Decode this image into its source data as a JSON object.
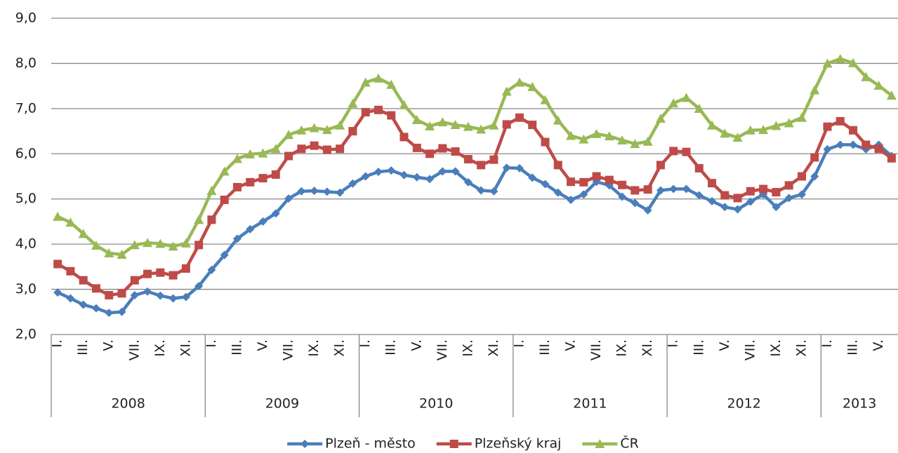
{
  "chart_data": {
    "type": "line",
    "categories": [
      "I.",
      null,
      "III.",
      null,
      "V.",
      null,
      "VII.",
      null,
      "IX.",
      null,
      "XI.",
      null,
      "I.",
      null,
      "III.",
      null,
      "V.",
      null,
      "VII.",
      null,
      "IX.",
      null,
      "XI.",
      null,
      "I.",
      null,
      "III.",
      null,
      "V.",
      null,
      "VII.",
      null,
      "IX.",
      null,
      "XI.",
      null,
      "I.",
      null,
      "III.",
      null,
      "V.",
      null,
      "VII.",
      null,
      "IX.",
      null,
      "XI.",
      null,
      "I.",
      null,
      "III.",
      null,
      "V.",
      null,
      "VII.",
      null,
      "IX.",
      null,
      "XI.",
      null,
      "I.",
      null,
      "III.",
      null,
      "V.",
      null
    ],
    "x_groups": [
      "2008",
      "2009",
      "2010",
      "2011",
      "2012",
      "2013"
    ],
    "series": [
      {
        "name": "Plzeň - město",
        "color": "#4a7ebb",
        "marker": "diamond",
        "values": [
          2.93,
          2.8,
          2.66,
          2.58,
          2.48,
          2.5,
          2.87,
          2.95,
          2.86,
          2.8,
          2.83,
          3.07,
          3.43,
          3.76,
          4.12,
          4.33,
          4.5,
          4.68,
          5.01,
          5.17,
          5.18,
          5.16,
          5.14,
          5.34,
          5.5,
          5.6,
          5.63,
          5.53,
          5.48,
          5.44,
          5.61,
          5.61,
          5.37,
          5.19,
          5.17,
          5.69,
          5.68,
          5.47,
          5.33,
          5.14,
          4.98,
          5.1,
          5.38,
          5.3,
          5.05,
          4.91,
          4.75,
          5.19,
          5.22,
          5.22,
          5.08,
          4.95,
          4.82,
          4.77,
          4.94,
          5.1,
          4.82,
          5.02,
          5.1,
          5.5,
          6.1,
          6.2,
          6.2,
          6.1,
          6.2,
          5.95
        ]
      },
      {
        "name": "Plzeňský kraj",
        "color": "#be4b48",
        "marker": "square",
        "values": [
          3.56,
          3.4,
          3.2,
          3.02,
          2.87,
          2.91,
          3.2,
          3.34,
          3.37,
          3.31,
          3.46,
          3.98,
          4.54,
          4.98,
          5.26,
          5.37,
          5.46,
          5.54,
          5.95,
          6.11,
          6.18,
          6.09,
          6.11,
          6.5,
          6.92,
          6.97,
          6.85,
          6.37,
          6.13,
          6.0,
          6.12,
          6.05,
          5.88,
          5.75,
          5.87,
          6.65,
          6.8,
          6.64,
          6.26,
          5.75,
          5.38,
          5.37,
          5.5,
          5.42,
          5.31,
          5.19,
          5.21,
          5.75,
          6.06,
          6.04,
          5.68,
          5.35,
          5.08,
          5.02,
          5.17,
          5.22,
          5.15,
          5.3,
          5.5,
          5.92,
          6.6,
          6.72,
          6.52,
          6.2,
          6.11,
          5.9
        ]
      },
      {
        "name": "ČR",
        "color": "#98b954",
        "marker": "triangle",
        "values": [
          4.61,
          4.48,
          4.23,
          3.97,
          3.8,
          3.77,
          3.98,
          4.03,
          4.01,
          3.95,
          4.02,
          4.54,
          5.18,
          5.61,
          5.89,
          5.99,
          6.01,
          6.11,
          6.42,
          6.52,
          6.57,
          6.53,
          6.63,
          7.11,
          7.58,
          7.67,
          7.53,
          7.08,
          6.75,
          6.61,
          6.7,
          6.64,
          6.6,
          6.54,
          6.63,
          7.38,
          7.58,
          7.48,
          7.19,
          6.74,
          6.4,
          6.32,
          6.44,
          6.39,
          6.3,
          6.22,
          6.27,
          6.78,
          7.12,
          7.24,
          7.0,
          6.63,
          6.45,
          6.36,
          6.52,
          6.53,
          6.62,
          6.68,
          6.8,
          7.41,
          8.0,
          8.1,
          8.01,
          7.7,
          7.51,
          7.29
        ]
      }
    ],
    "ylim": [
      2,
      9
    ],
    "yticks": [
      {
        "value": 2,
        "label": "2,0"
      },
      {
        "value": 3,
        "label": "3,0"
      },
      {
        "value": 4,
        "label": "4,0"
      },
      {
        "value": 5,
        "label": "5,0"
      },
      {
        "value": 6,
        "label": "6,0"
      },
      {
        "value": 7,
        "label": "7,0"
      },
      {
        "value": 8,
        "label": "8,0"
      },
      {
        "value": 9,
        "label": "9,0"
      }
    ],
    "grid": true,
    "legend": "bottom"
  }
}
